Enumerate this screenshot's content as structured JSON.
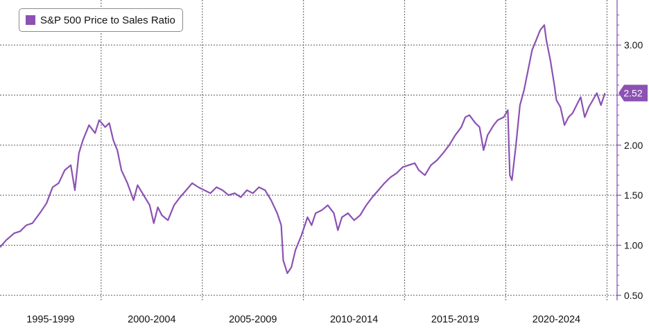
{
  "colors": {
    "series": "#8b51b3",
    "grid": "#5a5a5a",
    "axis": "#8b51b3",
    "text": "#111111"
  },
  "chart_data": {
    "type": "line",
    "title": "",
    "xlabel": "",
    "ylabel": "",
    "legend": {
      "placement": "top-left",
      "entries": [
        "S&P 500 Price to Sales Ratio"
      ]
    },
    "grid": true,
    "x_range": [
      1995.0,
      2025.5
    ],
    "ylim": [
      0.45,
      3.45
    ],
    "y_ticks": [
      0.5,
      1.0,
      1.5,
      2.0,
      2.5,
      3.0
    ],
    "y_tick_labels": [
      "0.50",
      "1.00",
      "1.50",
      "2.00",
      "2.50",
      "3.00"
    ],
    "x_ticks": [
      1997.5,
      2002.5,
      2007.5,
      2012.5,
      2017.5,
      2022.5
    ],
    "x_tick_labels": [
      "1995-1999",
      "2000-2004",
      "2005-2009",
      "2010-2014",
      "2015-2019",
      "2020-2024"
    ],
    "x_gridlines": [
      2000.0,
      2005.0,
      2010.0,
      2015.0,
      2020.0,
      2025.0
    ],
    "last_value_label": "2.52",
    "series": [
      {
        "name": "S&P 500 Price to Sales Ratio",
        "x": [
          1995.0,
          1995.3,
          1995.7,
          1996.0,
          1996.3,
          1996.6,
          1997.0,
          1997.3,
          1997.6,
          1997.9,
          1998.2,
          1998.5,
          1998.7,
          1998.9,
          1999.1,
          1999.4,
          1999.7,
          1999.9,
          2000.2,
          2000.4,
          2000.6,
          2000.8,
          2001.0,
          2001.3,
          2001.6,
          2001.8,
          2002.1,
          2002.4,
          2002.6,
          2002.8,
          2003.0,
          2003.3,
          2003.6,
          2003.9,
          2004.2,
          2004.5,
          2004.8,
          2005.1,
          2005.4,
          2005.7,
          2006.0,
          2006.3,
          2006.6,
          2006.9,
          2007.2,
          2007.5,
          2007.8,
          2008.1,
          2008.4,
          2008.7,
          2008.9,
          2009.0,
          2009.2,
          2009.4,
          2009.6,
          2009.9,
          2010.2,
          2010.4,
          2010.6,
          2010.9,
          2011.2,
          2011.5,
          2011.7,
          2011.9,
          2012.2,
          2012.5,
          2012.8,
          2013.1,
          2013.4,
          2013.7,
          2014.0,
          2014.3,
          2014.6,
          2014.9,
          2015.2,
          2015.5,
          2015.7,
          2016.0,
          2016.3,
          2016.6,
          2016.9,
          2017.2,
          2017.5,
          2017.8,
          2018.0,
          2018.2,
          2018.5,
          2018.7,
          2018.9,
          2019.1,
          2019.4,
          2019.6,
          2019.9,
          2020.1,
          2020.2,
          2020.3,
          2020.5,
          2020.7,
          2020.9,
          2021.1,
          2021.3,
          2021.5,
          2021.7,
          2021.9,
          2022.0,
          2022.2,
          2022.4,
          2022.5,
          2022.7,
          2022.9,
          2023.1,
          2023.3,
          2023.5,
          2023.7,
          2023.9,
          2024.1,
          2024.3,
          2024.5,
          2024.7,
          2024.9
        ],
        "y": [
          0.98,
          1.05,
          1.12,
          1.14,
          1.2,
          1.22,
          1.33,
          1.42,
          1.58,
          1.62,
          1.75,
          1.8,
          1.55,
          1.92,
          2.05,
          2.2,
          2.12,
          2.25,
          2.18,
          2.22,
          2.05,
          1.95,
          1.75,
          1.62,
          1.45,
          1.6,
          1.5,
          1.4,
          1.22,
          1.38,
          1.3,
          1.25,
          1.4,
          1.48,
          1.55,
          1.62,
          1.58,
          1.55,
          1.52,
          1.58,
          1.55,
          1.5,
          1.52,
          1.48,
          1.55,
          1.52,
          1.58,
          1.55,
          1.45,
          1.32,
          1.2,
          0.85,
          0.72,
          0.78,
          0.95,
          1.1,
          1.28,
          1.2,
          1.32,
          1.35,
          1.4,
          1.32,
          1.15,
          1.28,
          1.32,
          1.25,
          1.3,
          1.4,
          1.48,
          1.55,
          1.62,
          1.68,
          1.72,
          1.78,
          1.8,
          1.82,
          1.75,
          1.7,
          1.8,
          1.85,
          1.92,
          2.0,
          2.1,
          2.18,
          2.28,
          2.3,
          2.22,
          2.18,
          1.95,
          2.1,
          2.2,
          2.25,
          2.28,
          2.35,
          1.7,
          1.65,
          2.0,
          2.4,
          2.55,
          2.75,
          2.95,
          3.05,
          3.15,
          3.2,
          3.05,
          2.85,
          2.6,
          2.45,
          2.38,
          2.2,
          2.28,
          2.32,
          2.4,
          2.48,
          2.28,
          2.38,
          2.45,
          2.52,
          2.4,
          2.52
        ]
      }
    ]
  }
}
